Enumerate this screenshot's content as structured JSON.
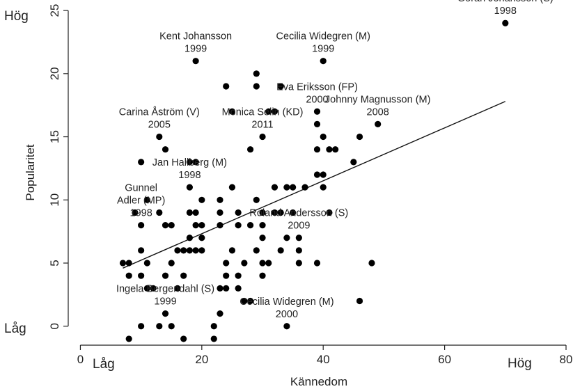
{
  "chart_data": {
    "type": "scatter",
    "xlabel": "Kännedom",
    "ylabel": "Popularitet",
    "xlim": [
      -2,
      80
    ],
    "ylim": [
      -1.5,
      25.5
    ],
    "x_ticks": [
      0,
      20,
      40,
      60,
      80
    ],
    "y_ticks": [
      0,
      5,
      10,
      15,
      20,
      25
    ],
    "grid": false,
    "end_labels": {
      "y_high": "Hög",
      "y_low": "Låg",
      "x_low": "Låg",
      "x_high": "Hög"
    },
    "trendline": {
      "x": [
        7,
        70
      ],
      "y": [
        4.6,
        17.8
      ]
    },
    "points": [
      [
        8,
        -1
      ],
      [
        17,
        -1
      ],
      [
        22,
        -1
      ],
      [
        10,
        0
      ],
      [
        13,
        0
      ],
      [
        15,
        0
      ],
      [
        22,
        0
      ],
      [
        34,
        0
      ],
      [
        14,
        1
      ],
      [
        23,
        1
      ],
      [
        27,
        2
      ],
      [
        28,
        2
      ],
      [
        46,
        2
      ],
      [
        11,
        3
      ],
      [
        12,
        3
      ],
      [
        16,
        3
      ],
      [
        23,
        3
      ],
      [
        24,
        3
      ],
      [
        26,
        3
      ],
      [
        8,
        4
      ],
      [
        10,
        4
      ],
      [
        14,
        4
      ],
      [
        17,
        4
      ],
      [
        24,
        4
      ],
      [
        26,
        4
      ],
      [
        30,
        4
      ],
      [
        7,
        5
      ],
      [
        8,
        5
      ],
      [
        11,
        5
      ],
      [
        15,
        5
      ],
      [
        24,
        5
      ],
      [
        27,
        5
      ],
      [
        30,
        5
      ],
      [
        31,
        5
      ],
      [
        36,
        5
      ],
      [
        39,
        5
      ],
      [
        48,
        5
      ],
      [
        10,
        6
      ],
      [
        16,
        6
      ],
      [
        17,
        6
      ],
      [
        18,
        6
      ],
      [
        19,
        6
      ],
      [
        20,
        6
      ],
      [
        25,
        6
      ],
      [
        29,
        6
      ],
      [
        33,
        6
      ],
      [
        36,
        6
      ],
      [
        18,
        7
      ],
      [
        20,
        7
      ],
      [
        30,
        7
      ],
      [
        34,
        7
      ],
      [
        36,
        7
      ],
      [
        10,
        8
      ],
      [
        14,
        8
      ],
      [
        15,
        8
      ],
      [
        19,
        8
      ],
      [
        20,
        8
      ],
      [
        23,
        8
      ],
      [
        26,
        8
      ],
      [
        28,
        8
      ],
      [
        30,
        8
      ],
      [
        9,
        9
      ],
      [
        13,
        9
      ],
      [
        18,
        9
      ],
      [
        19,
        9
      ],
      [
        23,
        9
      ],
      [
        26,
        9
      ],
      [
        30,
        9
      ],
      [
        32,
        9
      ],
      [
        33,
        9
      ],
      [
        35,
        9
      ],
      [
        41,
        9
      ],
      [
        11,
        10
      ],
      [
        20,
        10
      ],
      [
        23,
        10
      ],
      [
        29,
        10
      ],
      [
        18,
        11
      ],
      [
        25,
        11
      ],
      [
        32,
        11
      ],
      [
        34,
        11
      ],
      [
        35,
        11
      ],
      [
        37,
        11
      ],
      [
        40,
        11
      ],
      [
        39,
        12
      ],
      [
        40,
        12
      ],
      [
        10,
        13
      ],
      [
        18,
        13
      ],
      [
        19,
        13
      ],
      [
        45,
        13
      ],
      [
        14,
        14
      ],
      [
        28,
        14
      ],
      [
        39,
        14
      ],
      [
        41,
        14
      ],
      [
        42,
        14
      ],
      [
        13,
        15
      ],
      [
        30,
        15
      ],
      [
        40,
        15
      ],
      [
        46,
        15
      ],
      [
        39,
        16
      ],
      [
        49,
        16
      ],
      [
        25,
        17
      ],
      [
        31,
        17
      ],
      [
        32,
        17
      ],
      [
        39,
        17
      ],
      [
        24,
        19
      ],
      [
        29,
        19
      ],
      [
        33,
        19
      ],
      [
        29,
        20
      ],
      [
        19,
        21
      ],
      [
        40,
        21
      ],
      [
        70,
        24
      ]
    ],
    "annotations": [
      {
        "lines": [
          "Kent Johansson",
          "1999"
        ],
        "x": 19,
        "y": 21
      },
      {
        "lines": [
          "Cecilia Widegren (M)",
          "1999"
        ],
        "x": 40,
        "y": 21
      },
      {
        "lines": [
          "Göran Johansson (S)",
          "1998"
        ],
        "x": 70,
        "y": 24
      },
      {
        "lines": [
          "Eva Eriksson (FP)",
          "2000"
        ],
        "x": 39,
        "y": 17
      },
      {
        "lines": [
          "Carina Åström (V)",
          "2005"
        ],
        "x": 13,
        "y": 15
      },
      {
        "lines": [
          "Monica Selin (KD)",
          "2011"
        ],
        "x": 30,
        "y": 15
      },
      {
        "lines": [
          "Johnny Magnusson (M)",
          "2008"
        ],
        "x": 49,
        "y": 16
      },
      {
        "lines": [
          "Jan Hallberg (M)",
          "1998"
        ],
        "x": 18,
        "y": 11
      },
      {
        "lines": [
          "Gunnel",
          "Adler (MP)",
          "1998"
        ],
        "x": 10,
        "y": 8
      },
      {
        "lines": [
          "Roland Andersson (S)",
          "2009"
        ],
        "x": 36,
        "y": 7
      },
      {
        "lines": [
          "Ingela Bergendahl (S)",
          "1999"
        ],
        "x": 14,
        "y": 1
      },
      {
        "lines": [
          "Cecilia Widegren (M)",
          "2000"
        ],
        "x": 34,
        "y": 0
      }
    ]
  }
}
